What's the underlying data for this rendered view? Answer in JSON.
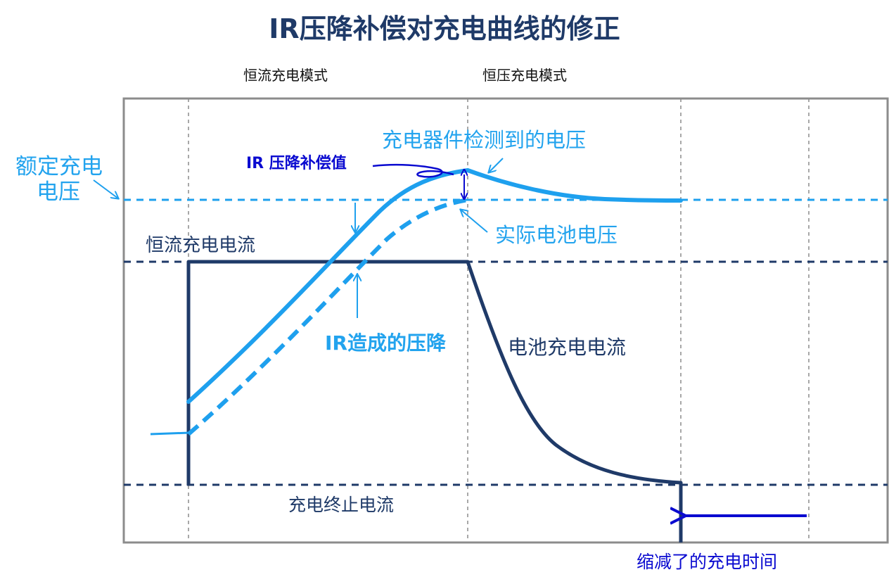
{
  "title": "IR压降补偿对充电曲线的修正",
  "modes": {
    "cc": "恒流充电模式",
    "cv": "恒压充电模式"
  },
  "labels": {
    "rated_voltage": [
      "额定充电",
      "电压"
    ],
    "ir_comp_value": "IR 压降补偿值",
    "detected_voltage": "充电器件检测到的电压",
    "actual_voltage": "实际电池电压",
    "cc_current": "恒流充电电流",
    "ir_drop": "IR造成的压降",
    "battery_current": "电池充电电流",
    "termination_current": "充电终止电流",
    "reduced_time": "缩减了的充电时间"
  },
  "colors": {
    "navy": "#1f3a68",
    "light_blue": "#1ea0ee",
    "label_light_blue": "#22a3ee",
    "dark_blue": "#0a0ad0",
    "grid_gray": "#8c8c8c"
  }
}
